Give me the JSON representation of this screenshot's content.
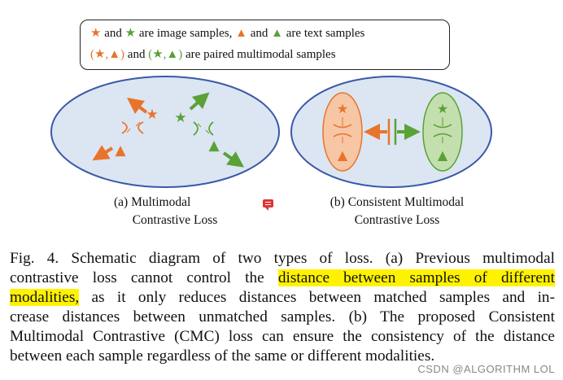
{
  "legend": {
    "line1_a": "and",
    "line1_b": "are image samples,",
    "line1_c": "and",
    "line1_d": "are text samples",
    "line2_pair1": "(★,▲)",
    "line2_and": "and",
    "line2_pair2": "(★,▲)",
    "line2_tail": "are paired multimodal samples"
  },
  "panels": {
    "a_line1": "(a)   Multimodal",
    "a_line2": "Contrastive Loss",
    "b_line1": "(b) Consistent Multimodal",
    "b_line2": "Contrastive Loss"
  },
  "caption": {
    "l1": "Fig. 4.   Schematic diagram of two types of loss. (a) Previous multimodal",
    "l2_pre": "contrastive loss cannot control the",
    "l2_hl": "distance between samples of different",
    "l3_hl": "modalities,",
    "l3_post": "as it only reduces distances between matched samples and in-",
    "l4": "crease distances between unmatched samples. (b) The proposed Consistent",
    "l5": "Multimodal Contrastive (CMC) loss can ensure the consistency of the distance",
    "l6": "between each sample regardless of the same or different modalities."
  },
  "watermark": "CSDN @ALGORITHM LOL",
  "colors": {
    "orange": "#e8742b",
    "green": "#5aa137",
    "ellipse_fill": "#dbe6f2",
    "ellipse_stroke": "#3a59a8",
    "highlight": "#fff200"
  },
  "icons": [
    "star-icon",
    "triangle-icon",
    "arrow-icon",
    "repel-arc-icon",
    "chat-icon"
  ]
}
